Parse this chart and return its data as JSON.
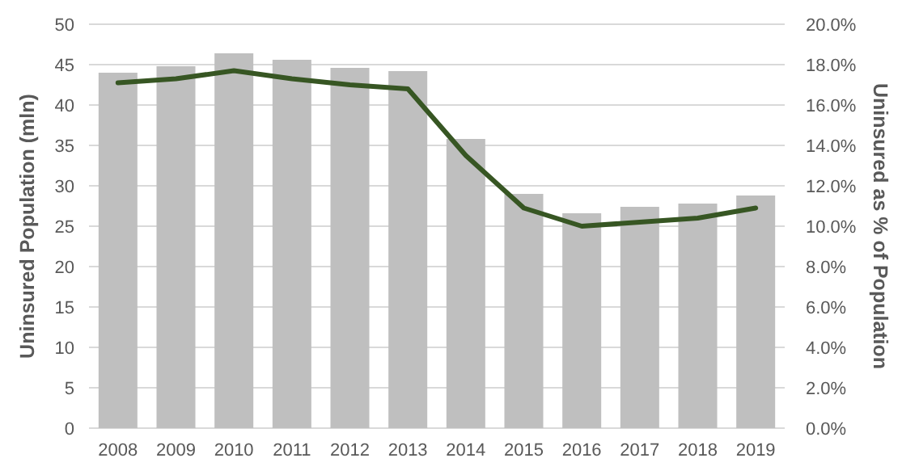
{
  "chart_data": {
    "type": "bar",
    "categories": [
      "2008",
      "2009",
      "2010",
      "2011",
      "2012",
      "2013",
      "2014",
      "2015",
      "2016",
      "2017",
      "2018",
      "2019"
    ],
    "series": [
      {
        "color": "#bfbfbf",
        "values": [
          44.0,
          44.8,
          46.4,
          45.6,
          44.6,
          44.2,
          35.8,
          29.0,
          26.6,
          27.4,
          27.8,
          28.8
        ]
      },
      {
        "type": "line",
        "axis": "y2",
        "color": "#375623",
        "values": [
          17.1,
          17.3,
          17.7,
          17.3,
          17.0,
          16.8,
          13.5,
          10.9,
          10.0,
          10.2,
          10.4,
          10.9
        ]
      }
    ],
    "ylabel": "Uninsured Population (mln)",
    "y2label": "Uninsured as % of Population",
    "ylim": [
      0,
      50
    ],
    "yticks": [
      0,
      5,
      10,
      15,
      20,
      25,
      30,
      35,
      40,
      45,
      50
    ],
    "y2lim": [
      0,
      20
    ],
    "y2ticks": [
      {
        "value": 0,
        "label": "0.0%"
      },
      {
        "value": 2,
        "label": "2.0%"
      },
      {
        "value": 4,
        "label": "4.0%"
      },
      {
        "value": 6,
        "label": "6.0%"
      },
      {
        "value": 8,
        "label": "8.0%"
      },
      {
        "value": 10,
        "label": "10.0%"
      },
      {
        "value": 12,
        "label": "12.0%"
      },
      {
        "value": 14,
        "label": "14.0%"
      },
      {
        "value": 16,
        "label": "16.0%"
      },
      {
        "value": 18,
        "label": "18.0%"
      },
      {
        "value": 20,
        "label": "20.0%"
      }
    ],
    "grid": "y",
    "line_style": "solid"
  }
}
